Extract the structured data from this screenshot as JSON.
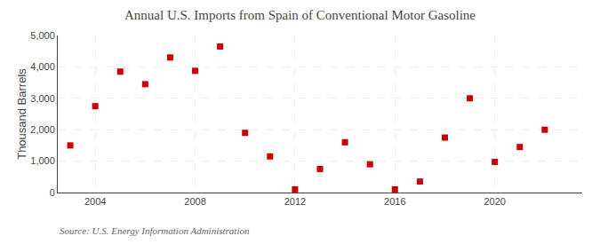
{
  "chart_data": {
    "type": "scatter",
    "title": "Annual U.S. Imports from Spain of Conventional Motor Gasoline",
    "ylabel": "Thousand Barrels",
    "annotations": [
      "Source: U.S. Energy Information Administration"
    ],
    "x": [
      2003,
      2004,
      2005,
      2006,
      2007,
      2008,
      2009,
      2010,
      2011,
      2012,
      2013,
      2014,
      2015,
      2016,
      2017,
      2018,
      2019,
      2020,
      2021,
      2022
    ],
    "values": [
      1500,
      2750,
      3850,
      3450,
      4300,
      3875,
      4650,
      1900,
      1150,
      100,
      750,
      1600,
      900,
      100,
      350,
      1750,
      3000,
      975,
      1450,
      2000
    ],
    "color": "#cc0000",
    "marker": "square",
    "xlim": [
      2002.5,
      2023.5
    ],
    "ylim": [
      0,
      5000
    ],
    "xticks": [
      2004,
      2008,
      2012,
      2016,
      2020
    ],
    "yticks": [
      0,
      {
        "value": 1000,
        "label": "1,000"
      },
      {
        "value": 2000,
        "label": "2,000"
      },
      {
        "value": 3000,
        "label": "3,000"
      },
      {
        "value": 4000,
        "label": "4,000"
      },
      {
        "value": 5000,
        "label": "5,000"
      }
    ],
    "grid": true
  }
}
